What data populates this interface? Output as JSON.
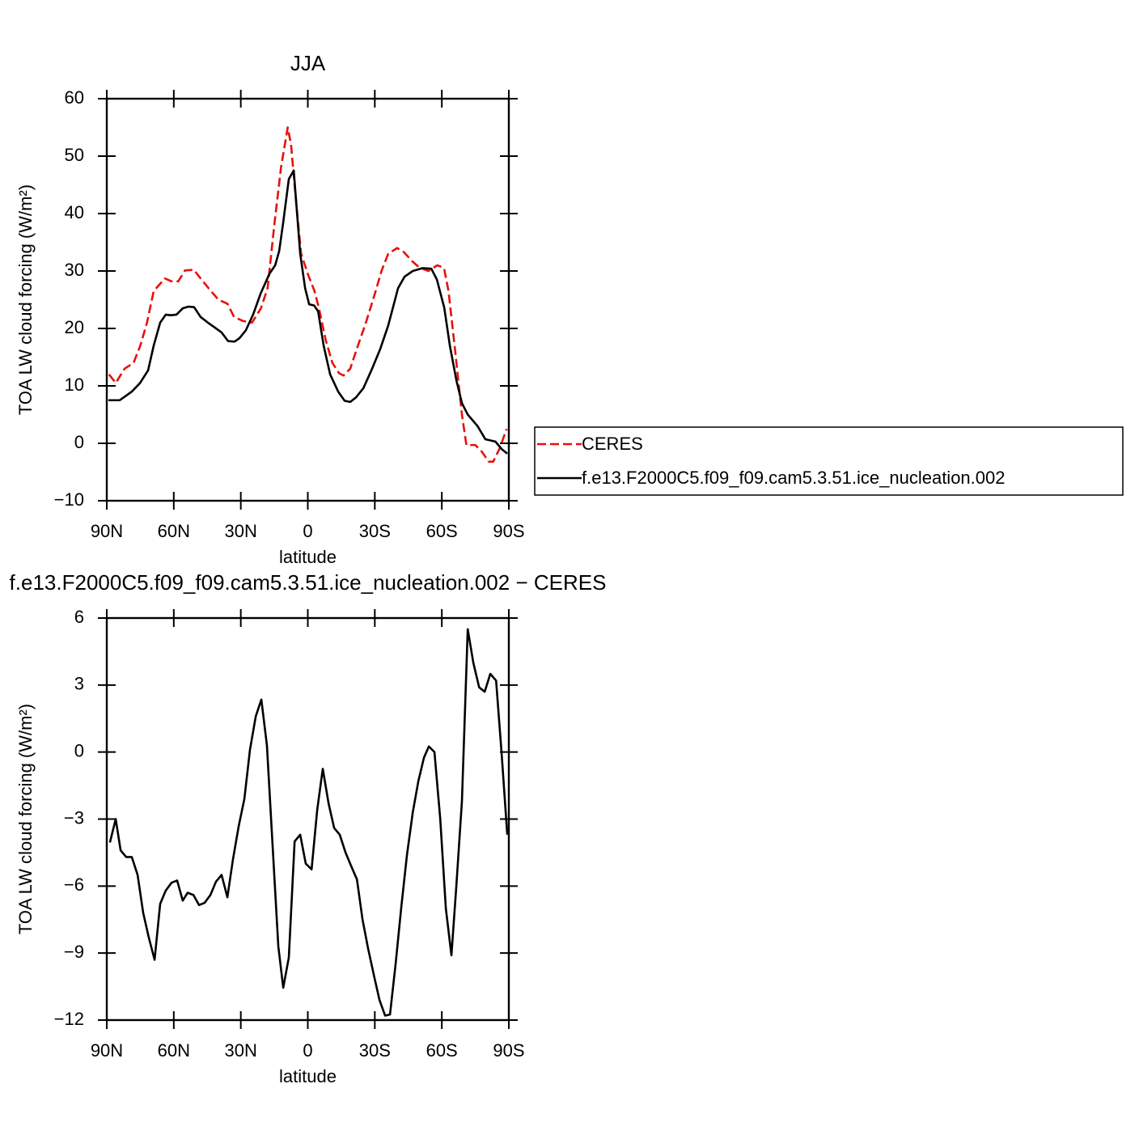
{
  "chart_data": [
    {
      "type": "line",
      "title": "JJA",
      "xlabel": "latitude",
      "ylabel": "TOA LW cloud forcing (W/m²)",
      "xlim": [
        90,
        -90
      ],
      "xticks": [
        {
          "value": 90,
          "label": "90N"
        },
        {
          "value": 60,
          "label": "60N"
        },
        {
          "value": 30,
          "label": "30N"
        },
        0,
        {
          "value": -30,
          "label": "30S"
        },
        {
          "value": -60,
          "label": "60S"
        },
        {
          "value": -90,
          "label": "90S"
        }
      ],
      "ylim": [
        -10,
        60
      ],
      "yticks": [
        {
          "value": -10,
          "label": "−10"
        },
        0,
        10,
        20,
        30,
        40,
        50,
        60
      ],
      "legend": "right",
      "series": [
        {
          "name": "CERES",
          "color": "#e8100c",
          "linestyle": "dashed",
          "x": [
            89,
            86,
            82,
            78,
            75,
            72,
            69,
            64,
            61,
            58,
            55,
            51,
            48,
            44,
            40,
            36,
            33,
            29,
            25,
            21,
            18,
            15,
            12,
            9,
            7.5,
            5,
            3,
            0,
            -3,
            -5,
            -8,
            -11,
            -14,
            -16,
            -19,
            -22,
            -26,
            -30,
            -33,
            -36,
            -40,
            -43,
            -47,
            -50,
            -54,
            -58,
            -61,
            -63,
            -66,
            -69,
            -71,
            -75,
            -78,
            -81,
            -83,
            -86,
            -89
          ],
          "values": [
            12,
            10.5,
            13,
            14,
            17,
            21,
            26.5,
            28.7,
            28.2,
            28.2,
            30.1,
            30.2,
            28.7,
            26.8,
            25,
            24.3,
            22,
            21.3,
            21,
            23.5,
            27,
            38,
            48,
            55,
            52,
            41,
            33,
            29.5,
            26.5,
            23.5,
            18,
            14,
            12.2,
            11.8,
            13,
            16.5,
            21,
            26,
            30,
            33,
            34,
            33.3,
            31.6,
            30.6,
            30,
            31,
            30.5,
            26.5,
            16,
            5,
            -0.3,
            -0.3,
            -1.5,
            -3.2,
            -3.2,
            -0.8,
            2.5
          ]
        },
        {
          "name": "f.e13.F2000C5.f09_f09.cam5.3.51.ice_nucleation.002",
          "color": "#000000",
          "linestyle": "solid",
          "x": [
            89.3,
            84.2,
            81.3,
            78.8,
            75.1,
            71.5,
            69,
            66.1,
            63.6,
            61.4,
            58.8,
            56,
            53.4,
            50.9,
            48,
            44.7,
            41.8,
            38.6,
            35.7,
            32.8,
            30.6,
            27.7,
            24.4,
            21.2,
            17.2,
            14.6,
            12.8,
            11,
            8.5,
            6.3,
            3.4,
            1.2,
            -0.6,
            -2.8,
            -4.6,
            -7.1,
            -10,
            -13.6,
            -16.5,
            -19,
            -21.6,
            -24.9,
            -28.8,
            -32.5,
            -36,
            -40.4,
            -43.3,
            -47,
            -51.3,
            -55.3,
            -57.8,
            -61.1,
            -63.6,
            -66.5,
            -69,
            -71.6,
            -76,
            -79.5,
            -84,
            -86.8,
            -89.3
          ],
          "values": [
            7.5,
            7.5,
            8.3,
            9,
            10.5,
            12.7,
            17,
            21,
            22.4,
            22.3,
            22.4,
            23.5,
            23.8,
            23.7,
            22,
            21,
            20.2,
            19.3,
            17.8,
            17.7,
            18.3,
            19.7,
            22.5,
            26,
            29.5,
            31,
            33.5,
            38.5,
            46,
            47.5,
            33,
            27,
            24.2,
            24,
            23,
            17,
            12,
            9,
            7.4,
            7.2,
            8,
            9.6,
            13,
            16.5,
            20.5,
            27,
            29,
            30,
            30.5,
            30.4,
            28.5,
            23.6,
            17,
            11,
            7,
            5,
            3,
            0.7,
            0.3,
            -1,
            -1.8
          ]
        }
      ]
    },
    {
      "type": "line",
      "title": "f.e13.F2000C5.f09_f09.cam5.3.51.ice_nucleation.002 − CERES",
      "xlabel": "latitude",
      "ylabel": "TOA LW cloud forcing (W/m²)",
      "xlim": [
        90,
        -90
      ],
      "xticks": [
        {
          "value": 90,
          "label": "90N"
        },
        {
          "value": 60,
          "label": "60N"
        },
        {
          "value": 30,
          "label": "30N"
        },
        0,
        {
          "value": -30,
          "label": "30S"
        },
        {
          "value": -60,
          "label": "60S"
        },
        {
          "value": -90,
          "label": "90S"
        }
      ],
      "ylim": [
        -12,
        6
      ],
      "yticks": [
        {
          "value": -12,
          "label": "−12"
        },
        {
          "value": -9,
          "label": "−9"
        },
        {
          "value": -6,
          "label": "−6"
        },
        {
          "value": -3,
          "label": "−3"
        },
        0,
        3,
        6
      ],
      "series": [
        {
          "color": "#000000",
          "linestyle": "solid",
          "x": [
            88.6,
            86,
            83.8,
            81.3,
            78.8,
            76.2,
            73.7,
            71.2,
            68.6,
            66.1,
            63.6,
            61,
            58.5,
            56,
            53.8,
            51.2,
            48.7,
            46.2,
            43.6,
            41.1,
            38.6,
            36,
            33.5,
            30.9,
            28.4,
            25.9,
            23.3,
            20.8,
            18.3,
            15.7,
            13.2,
            11,
            8.5,
            5.9,
            3.4,
            0.9,
            -1.7,
            -4.2,
            -6.7,
            -9.3,
            -11.8,
            -14.3,
            -16.9,
            -19.4,
            -22,
            -24.5,
            -27,
            -29.6,
            -32.1,
            -34.6,
            -36.8,
            -39.3,
            -41.9,
            -44.4,
            -47,
            -49.5,
            -52,
            -54.2,
            -56.7,
            -59.3,
            -61.8,
            -64.3,
            -66.5,
            -69,
            -71.6,
            -74.1,
            -76.7,
            -79.2,
            -81.7,
            -84.3,
            -86.8,
            -89.3
          ],
          "values": [
            -4.05,
            -3,
            -4.4,
            -4.7,
            -4.7,
            -5.5,
            -7.2,
            -8.3,
            -9.3,
            -6.8,
            -6.2,
            -5.85,
            -5.75,
            -6.65,
            -6.3,
            -6.4,
            -6.85,
            -6.75,
            -6.4,
            -5.8,
            -5.5,
            -6.5,
            -4.8,
            -3.3,
            -2.1,
            0.1,
            1.6,
            2.35,
            0.3,
            -4.3,
            -8.7,
            -10.55,
            -9.2,
            -4,
            -3.7,
            -5,
            -5.25,
            -2.6,
            -0.75,
            -2.3,
            -3.4,
            -3.7,
            -4.5,
            -5.1,
            -5.7,
            -7.5,
            -8.8,
            -10,
            -11.1,
            -11.8,
            -11.75,
            -9.5,
            -6.9,
            -4.6,
            -2.7,
            -1.3,
            -0.25,
            0.25,
            0,
            -3,
            -7,
            -9.1,
            -6,
            -2.2,
            5.5,
            4,
            2.9,
            2.7,
            3.5,
            3.2,
            -0.1,
            -3.7
          ]
        }
      ]
    }
  ]
}
